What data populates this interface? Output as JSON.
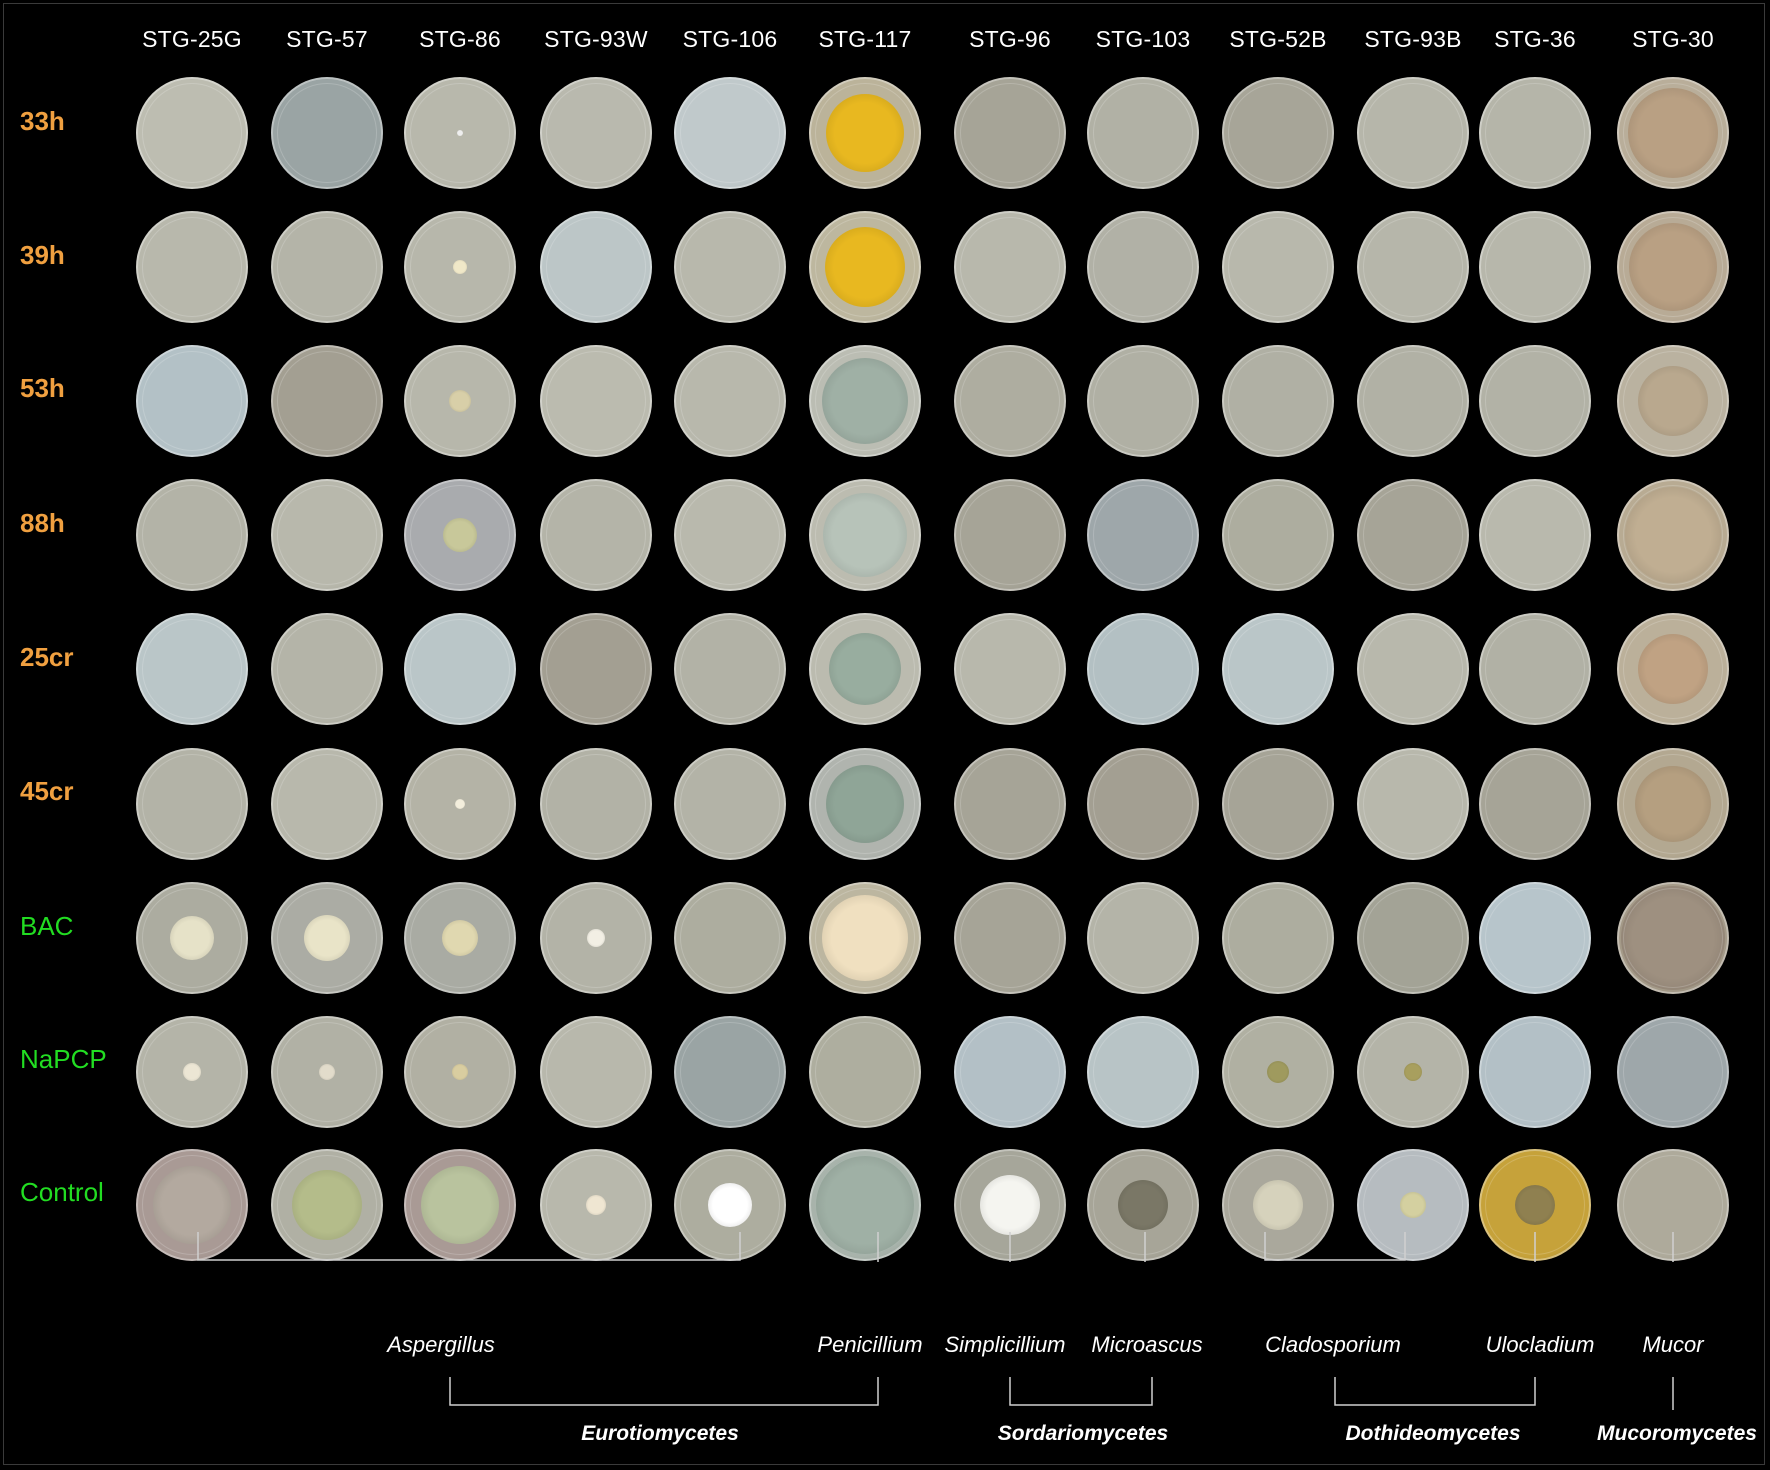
{
  "strains": [
    "STG-25G",
    "STG-57",
    "STG-86",
    "STG-93W",
    "STG-106",
    "STG-117",
    "STG-96",
    "STG-103",
    "STG-52B",
    "STG-93B",
    "STG-36",
    "STG-30"
  ],
  "treatments": [
    {
      "label": "33h",
      "color": "#f0a040"
    },
    {
      "label": "39h",
      "color": "#f0a040"
    },
    {
      "label": "53h",
      "color": "#f0a040"
    },
    {
      "label": "88h",
      "color": "#f0a040"
    },
    {
      "label": "25cr",
      "color": "#f0a040"
    },
    {
      "label": "45cr",
      "color": "#f0a040"
    },
    {
      "label": "BAC",
      "color": "#22dd22"
    },
    {
      "label": "NaPCP",
      "color": "#22dd22"
    },
    {
      "label": "Control",
      "color": "#22dd22"
    }
  ],
  "genera": [
    "Aspergillus",
    "Penicillium",
    "Simplicillium",
    "Microascus",
    "Cladosporium",
    "Ulocladium",
    "Mucor"
  ],
  "classes": [
    "Eurotiomycetes",
    "Sordariomycetes",
    "Dothideomycetes",
    "Mucoromycetes"
  ],
  "colors": {
    "background": "#000000",
    "plate_default": "#b9b9ad",
    "plate_bluish": "#b3c0c3",
    "plate_gray": "#a7a598",
    "penicillium_yellow": "#e8b820",
    "penicillium_green": "#9fb0a5",
    "mucor_brown": "#b9a083",
    "ulocladium_yellow": "#c6a23a"
  }
}
